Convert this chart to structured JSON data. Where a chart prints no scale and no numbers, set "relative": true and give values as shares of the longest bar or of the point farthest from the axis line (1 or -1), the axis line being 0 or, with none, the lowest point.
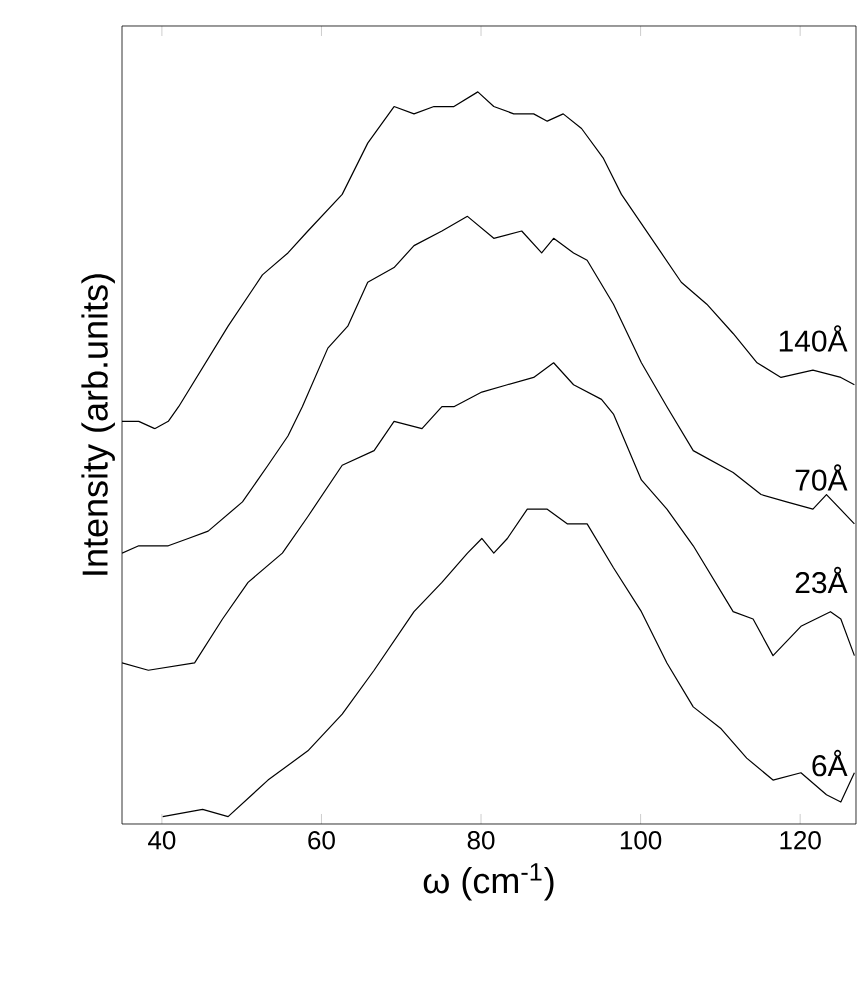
{
  "chart_data": {
    "type": "line",
    "relative": true,
    "xlabel": "ω (cm$^{-1}$)",
    "ylabel": "Intensity (arb.units)",
    "xlim": [
      35,
      127
    ],
    "xticks": [
      40,
      60,
      80,
      100,
      120
    ],
    "grid": false,
    "marker": "none",
    "line_style": "solid",
    "series": [
      {
        "name": "140Å",
        "color": "#000000",
        "x": [
          35,
          37.1,
          39.1,
          40.8,
          42.1,
          48.3,
          52.6,
          55.8,
          58.3,
          62.6,
          65.8,
          69.1,
          71.6,
          74.1,
          76.6,
          79.6,
          81.6,
          84.1,
          86.6,
          88.3,
          90.3,
          92.6,
          95.3,
          97.6,
          100.1,
          102.6,
          105.1,
          108.3,
          111.6,
          114.6,
          117.6,
          121.6,
          125.1,
          126.8
        ],
        "values": [
          0.55,
          0.55,
          0.54,
          0.55,
          0.57,
          0.68,
          0.75,
          0.78,
          0.81,
          0.86,
          0.93,
          0.98,
          0.97,
          0.98,
          0.98,
          1,
          0.98,
          0.97,
          0.97,
          0.96,
          0.97,
          0.95,
          0.91,
          0.86,
          0.82,
          0.78,
          0.74,
          0.71,
          0.67,
          0.63,
          0.61,
          0.62,
          0.61,
          0.6
        ]
      },
      {
        "name": "70Å",
        "color": "#000000",
        "x": [
          35,
          37.1,
          40.8,
          43.3,
          45.8,
          50.1,
          53.3,
          55.8,
          57.6,
          60.8,
          63.3,
          65.8,
          69.1,
          71.6,
          75.1,
          78.3,
          81.6,
          85.1,
          87.6,
          89.1,
          91.6,
          93.3,
          96.6,
          100.1,
          103.3,
          106.6,
          111.6,
          115.1,
          118.3,
          121.6,
          123.3,
          126.8
        ],
        "values": [
          0.37,
          0.38,
          0.38,
          0.39,
          0.4,
          0.44,
          0.49,
          0.53,
          0.57,
          0.65,
          0.68,
          0.74,
          0.76,
          0.79,
          0.81,
          0.83,
          0.8,
          0.81,
          0.78,
          0.8,
          0.78,
          0.77,
          0.71,
          0.63,
          0.57,
          0.51,
          0.48,
          0.45,
          0.44,
          0.43,
          0.45,
          0.41
        ]
      },
      {
        "name": "23Å",
        "color": "#000000",
        "x": [
          35,
          38.3,
          44.1,
          47.6,
          50.8,
          55.1,
          58.3,
          62.6,
          66.6,
          69.1,
          72.6,
          75.1,
          76.6,
          80.1,
          83.3,
          86.6,
          89.1,
          91.6,
          95.1,
          96.6,
          100.1,
          103.3,
          106.6,
          111.6,
          114.1,
          116.6,
          120.1,
          123.8,
          125.1,
          126.8
        ],
        "values": [
          0.22,
          0.21,
          0.22,
          0.28,
          0.33,
          0.37,
          0.42,
          0.49,
          0.51,
          0.55,
          0.54,
          0.57,
          0.57,
          0.59,
          0.6,
          0.61,
          0.63,
          0.6,
          0.58,
          0.56,
          0.47,
          0.43,
          0.38,
          0.29,
          0.28,
          0.23,
          0.27,
          0.29,
          0.28,
          0.23
        ]
      },
      {
        "name": "6Å",
        "color": "#000000",
        "x": [
          40.1,
          45.1,
          48.3,
          53.3,
          58.3,
          62.6,
          66.6,
          71.6,
          75.1,
          78.3,
          80.1,
          81.6,
          83.3,
          85.8,
          88.3,
          90.8,
          93.3,
          96.6,
          100.1,
          103.3,
          106.6,
          110.1,
          113.3,
          116.6,
          120.1,
          123.3,
          125.1,
          126.8
        ],
        "values": [
          0.01,
          0.02,
          0.01,
          0.06,
          0.1,
          0.15,
          0.21,
          0.29,
          0.33,
          0.37,
          0.39,
          0.37,
          0.39,
          0.43,
          0.43,
          0.41,
          0.41,
          0.35,
          0.29,
          0.22,
          0.16,
          0.13,
          0.09,
          0.06,
          0.07,
          0.04,
          0.03,
          0.07
        ]
      }
    ]
  }
}
